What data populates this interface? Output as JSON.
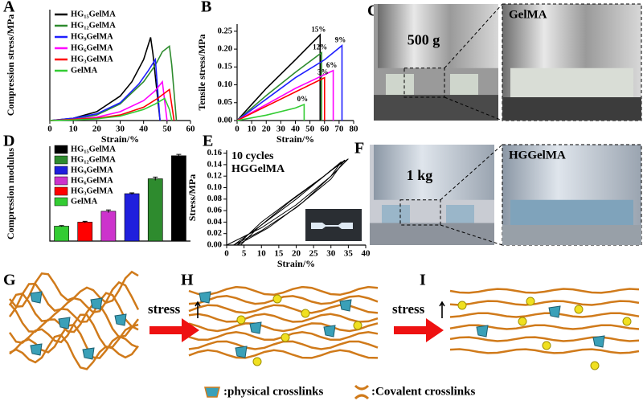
{
  "chart_data": [
    {
      "type": "line",
      "panel": "A",
      "xlabel": "Strain/%",
      "ylabel": "Compression stress/MPa",
      "xlim": [
        0,
        60
      ],
      "xticks": [
        0,
        10,
        20,
        30,
        40,
        50,
        60
      ],
      "ylim": [
        0,
        1
      ],
      "series": [
        {
          "name": "HG₁₅GelMA",
          "color": "#000000",
          "x": [
            0,
            10,
            20,
            30,
            35,
            40,
            43,
            44,
            47
          ],
          "values": [
            0,
            0.02,
            0.08,
            0.22,
            0.35,
            0.55,
            0.75,
            0.6,
            0
          ]
        },
        {
          "name": "HG₁₂GelMA",
          "color": "#2e8b2e",
          "x": [
            0,
            10,
            20,
            30,
            40,
            45,
            48,
            51,
            52,
            54
          ],
          "values": [
            0,
            0.01,
            0.05,
            0.15,
            0.35,
            0.5,
            0.62,
            0.67,
            0.5,
            0
          ]
        },
        {
          "name": "HG₉GelMA",
          "color": "#1f1fff",
          "x": [
            0,
            10,
            20,
            30,
            38,
            42,
            45,
            47
          ],
          "values": [
            0,
            0.02,
            0.06,
            0.16,
            0.33,
            0.45,
            0.55,
            0
          ]
        },
        {
          "name": "HG₆GelMA",
          "color": "#ff00ff",
          "x": [
            0,
            10,
            20,
            30,
            40,
            45,
            48,
            50
          ],
          "values": [
            0,
            0.01,
            0.03,
            0.08,
            0.18,
            0.27,
            0.35,
            0
          ]
        },
        {
          "name": "HG₃GelMA",
          "color": "#ff0000",
          "x": [
            0,
            10,
            20,
            30,
            40,
            46,
            51,
            53
          ],
          "values": [
            0,
            0.01,
            0.02,
            0.05,
            0.12,
            0.2,
            0.28,
            0
          ]
        },
        {
          "name": "GelMA",
          "color": "#33cc33",
          "x": [
            0,
            10,
            20,
            30,
            40,
            45,
            49,
            51,
            52
          ],
          "values": [
            0,
            0.005,
            0.015,
            0.04,
            0.1,
            0.15,
            0.2,
            0.1,
            0
          ]
        }
      ]
    },
    {
      "type": "line",
      "panel": "B",
      "xlabel": "Strain/%",
      "ylabel": "Tensile stress/MPa",
      "xlim": [
        0,
        80
      ],
      "xticks": [
        0,
        10,
        20,
        30,
        40,
        50,
        60,
        70,
        80
      ],
      "ylim": [
        0,
        0.27
      ],
      "yticks": [
        {
          "value": 0,
          "label": "0.00"
        },
        {
          "value": 0.05,
          "label": "0.05"
        },
        {
          "value": 0.1,
          "label": "0.10"
        },
        {
          "value": 0.15,
          "label": "0.15"
        },
        {
          "value": 0.2,
          "label": "0.20"
        },
        {
          "value": 0.25,
          "label": "0.25"
        }
      ],
      "series": [
        {
          "name": "15%",
          "color": "#000000",
          "x": [
            0,
            20,
            40,
            57,
            57
          ],
          "values": [
            0,
            0.09,
            0.17,
            0.24,
            0
          ]
        },
        {
          "name": "12%",
          "color": "#2e8b2e",
          "x": [
            0,
            20,
            40,
            58,
            58
          ],
          "values": [
            0,
            0.07,
            0.135,
            0.19,
            0
          ]
        },
        {
          "name": "9%",
          "color": "#1f1fff",
          "x": [
            0,
            20,
            40,
            60,
            72,
            72
          ],
          "values": [
            0,
            0.06,
            0.12,
            0.17,
            0.21,
            0
          ]
        },
        {
          "name": "6%",
          "color": "#ff00ff",
          "x": [
            0,
            20,
            40,
            66,
            66
          ],
          "values": [
            0,
            0.045,
            0.09,
            0.14,
            0
          ]
        },
        {
          "name": "3%",
          "color": "#ff0000",
          "x": [
            0,
            20,
            40,
            60,
            60
          ],
          "values": [
            0,
            0.04,
            0.08,
            0.12,
            0
          ]
        },
        {
          "name": "0%",
          "color": "#33cc33",
          "x": [
            0,
            20,
            40,
            46,
            46
          ],
          "values": [
            0,
            0.015,
            0.035,
            0.045,
            0
          ]
        }
      ]
    },
    {
      "type": "bar",
      "panel": "D",
      "ylabel": "Compression modulus",
      "ylim": [
        0,
        0.7
      ],
      "series": [
        {
          "name": "GelMA",
          "color": "#33cc33",
          "values": [
            0.11
          ],
          "errors": [
            0.004
          ]
        },
        {
          "name": "HG₃GelMA",
          "color": "#ff0000",
          "values": [
            0.14
          ],
          "errors": [
            0.006
          ]
        },
        {
          "name": "HG₆GelMA",
          "color": "#cc33cc",
          "values": [
            0.22
          ],
          "errors": [
            0.01
          ]
        },
        {
          "name": "HG₉GelMA",
          "color": "#1f1fdd",
          "values": [
            0.35
          ],
          "errors": [
            0.006
          ]
        },
        {
          "name": "HG₁₂GelMA",
          "color": "#2e8b2e",
          "values": [
            0.46
          ],
          "errors": [
            0.012
          ]
        },
        {
          "name": "HG₁₅GelMA",
          "color": "#000000",
          "values": [
            0.63
          ],
          "errors": [
            0.01
          ]
        }
      ]
    },
    {
      "type": "line",
      "panel": "E",
      "xlabel": "Strain/%",
      "ylabel": "Stress/MPa",
      "xlim": [
        0,
        40
      ],
      "xticks": [
        0,
        5,
        10,
        15,
        20,
        25,
        30,
        35,
        40
      ],
      "ylim": [
        0,
        0.165
      ],
      "yticks": [
        {
          "value": 0,
          "label": "0.00"
        },
        {
          "value": 0.02,
          "label": "0.02"
        },
        {
          "value": 0.04,
          "label": "0.04"
        },
        {
          "value": 0.06,
          "label": "0.06"
        },
        {
          "value": 0.08,
          "label": "0.08"
        },
        {
          "value": 0.1,
          "label": "0.10"
        },
        {
          "value": 0.12,
          "label": "0.12"
        },
        {
          "value": 0.14,
          "label": "0.14"
        },
        {
          "value": 0.16,
          "label": "0.16"
        }
      ],
      "annotations": [
        "10 cycles",
        "HGGelMA"
      ],
      "series": [
        {
          "color": "#000000",
          "x": [
            0,
            10,
            20,
            30,
            35,
            30,
            20,
            10,
            2,
            0
          ],
          "values": [
            0,
            0.03,
            0.07,
            0.12,
            0.15,
            0.13,
            0.08,
            0.035,
            0,
            0
          ]
        },
        {
          "color": "#000000",
          "x": [
            2,
            10,
            20,
            30,
            34,
            28,
            20,
            10,
            3,
            2
          ],
          "values": [
            0,
            0.025,
            0.065,
            0.115,
            0.148,
            0.12,
            0.085,
            0.04,
            0,
            0
          ]
        },
        {
          "color": "#000000",
          "x": [
            3,
            12,
            22,
            30,
            33,
            27,
            18,
            9,
            4,
            3
          ],
          "values": [
            0,
            0.03,
            0.075,
            0.12,
            0.145,
            0.115,
            0.075,
            0.03,
            0,
            0
          ]
        }
      ]
    }
  ],
  "photos": [
    {
      "panel": "C",
      "load": "500 g",
      "inset": "GelMA"
    },
    {
      "panel": "F",
      "load": "1 kg",
      "inset": "HGGelMA"
    }
  ],
  "schematic": {
    "panels": [
      "G",
      "H",
      "I"
    ],
    "arrows": [
      "stress",
      "stress"
    ],
    "legend": [
      ":physical crosslinks",
      ":Covalent crosslinks"
    ]
  }
}
